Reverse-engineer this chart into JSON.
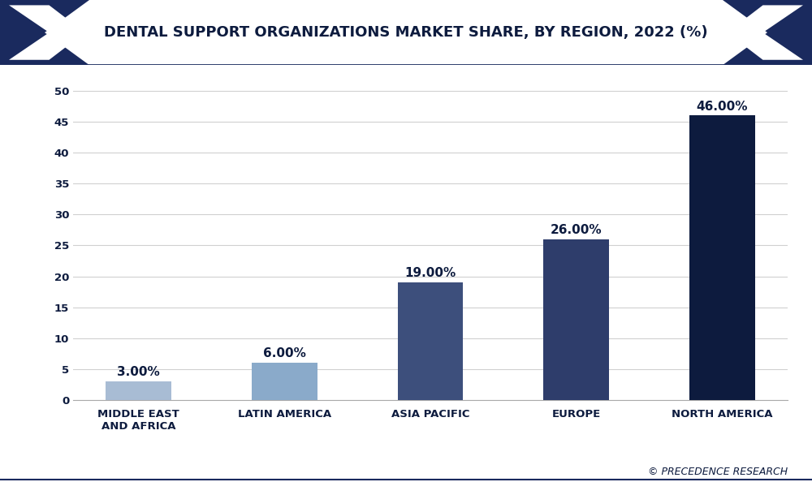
{
  "categories": [
    "MIDDLE EAST\nAND AFRICA",
    "LATIN AMERICA",
    "ASIA PACIFIC",
    "EUROPE",
    "NORTH AMERICA"
  ],
  "values": [
    3.0,
    6.0,
    19.0,
    26.0,
    46.0
  ],
  "bar_colors": [
    "#a8bcd4",
    "#8aaaca",
    "#3d4f7c",
    "#2e3d6b",
    "#0d1b3e"
  ],
  "labels": [
    "3.00%",
    "6.00%",
    "19.00%",
    "26.00%",
    "46.00%"
  ],
  "title": "DENTAL SUPPORT ORGANIZATIONS MARKET SHARE, BY REGION, 2022 (%)",
  "title_fontsize": 13,
  "label_fontsize": 11,
  "tick_fontsize": 9.5,
  "yticks": [
    0,
    5,
    10,
    15,
    20,
    25,
    30,
    35,
    40,
    45,
    50
  ],
  "ylim": [
    0,
    53
  ],
  "background_color": "#ffffff",
  "grid_color": "#d0d0d0",
  "watermark": "© PRECEDENCE RESEARCH",
  "title_bg_color": "#ffffff",
  "title_text_color": "#0d1b3e",
  "chevron_color": "#1a2a5e",
  "axis_label_color": "#0d1b3e",
  "bar_label_color": "#0d1b3e",
  "border_color": "#1a2a5e"
}
